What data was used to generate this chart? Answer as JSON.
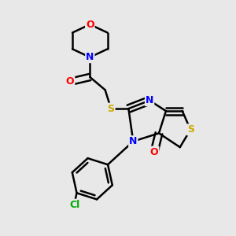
{
  "bg_color": "#e8e8e8",
  "atom_colors": {
    "C": "#000000",
    "N": "#0000ff",
    "O": "#ff0000",
    "S": "#ccaa00",
    "Cl": "#00aa00"
  },
  "bond_color": "#000000",
  "bond_width": 1.8,
  "fig_size": [
    3.0,
    3.0
  ],
  "dpi": 100
}
